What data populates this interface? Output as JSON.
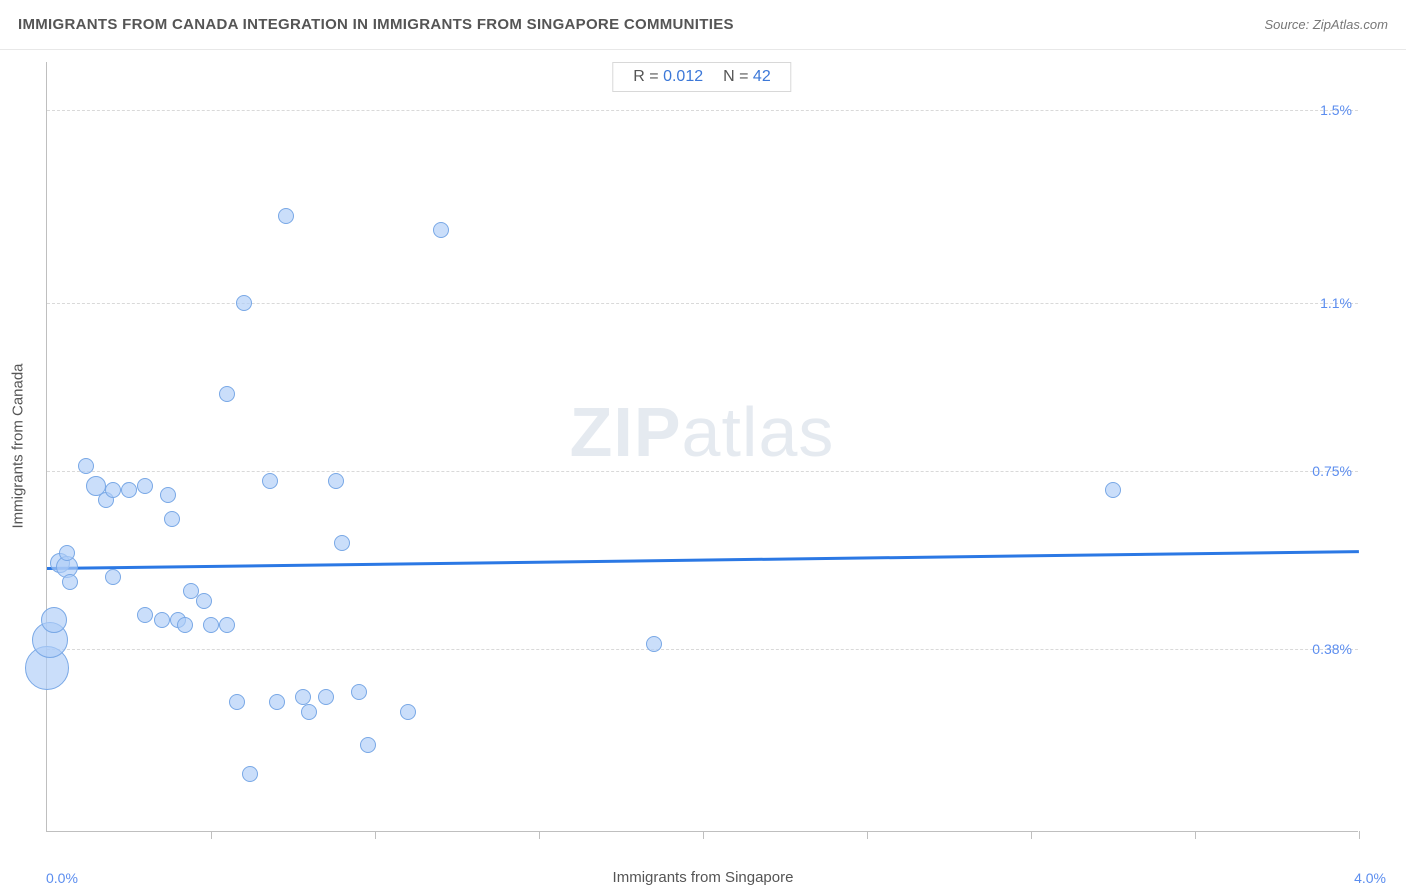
{
  "header": {
    "title": "IMMIGRANTS FROM CANADA INTEGRATION IN IMMIGRANTS FROM SINGAPORE COMMUNITIES",
    "source_prefix": "Source: ",
    "source_name": "ZipAtlas.com"
  },
  "chart": {
    "type": "scatter",
    "xlabel": "Immigrants from Singapore",
    "ylabel": "Immigrants from Canada",
    "xlim": [
      0.0,
      4.0
    ],
    "ylim": [
      0.0,
      1.6
    ],
    "xmin_label": "0.0%",
    "xmax_label": "4.0%",
    "ytick_labels": [
      {
        "value": 0.38,
        "label": "0.38%"
      },
      {
        "value": 0.75,
        "label": "0.75%"
      },
      {
        "value": 1.1,
        "label": "1.1%"
      },
      {
        "value": 1.5,
        "label": "1.5%"
      }
    ],
    "xtick_positions": [
      0.5,
      1.0,
      1.5,
      2.0,
      2.5,
      3.0,
      3.5,
      4.0
    ],
    "gridlines_y": [
      0.38,
      0.75,
      1.1,
      1.5
    ],
    "background_color": "#ffffff",
    "grid_color": "#d9d9d9",
    "axis_color": "#bfbfbf",
    "point_fill": "rgba(173,205,247,0.65)",
    "point_stroke": "#79a8e6",
    "regression_color": "#2b78e4",
    "stats": {
      "r_label": "R =",
      "r_value": "0.012",
      "n_label": "N =",
      "n_value": "42"
    },
    "regression": {
      "y_at_xmin": 0.55,
      "y_at_xmax": 0.585
    },
    "points": [
      {
        "x": 0.0,
        "y": 0.34,
        "r": 22
      },
      {
        "x": 0.01,
        "y": 0.4,
        "r": 18
      },
      {
        "x": 0.02,
        "y": 0.44,
        "r": 13
      },
      {
        "x": 0.04,
        "y": 0.56,
        "r": 10
      },
      {
        "x": 0.06,
        "y": 0.55,
        "r": 11
      },
      {
        "x": 0.06,
        "y": 0.58,
        "r": 8
      },
      {
        "x": 0.07,
        "y": 0.52,
        "r": 8
      },
      {
        "x": 0.12,
        "y": 0.76,
        "r": 8
      },
      {
        "x": 0.15,
        "y": 0.72,
        "r": 10
      },
      {
        "x": 0.18,
        "y": 0.69,
        "r": 8
      },
      {
        "x": 0.2,
        "y": 0.71,
        "r": 8
      },
      {
        "x": 0.2,
        "y": 0.53,
        "r": 8
      },
      {
        "x": 0.25,
        "y": 0.71,
        "r": 8
      },
      {
        "x": 0.3,
        "y": 0.72,
        "r": 8
      },
      {
        "x": 0.3,
        "y": 0.45,
        "r": 8
      },
      {
        "x": 0.35,
        "y": 0.44,
        "r": 8
      },
      {
        "x": 0.37,
        "y": 0.7,
        "r": 8
      },
      {
        "x": 0.38,
        "y": 0.65,
        "r": 8
      },
      {
        "x": 0.4,
        "y": 0.44,
        "r": 8
      },
      {
        "x": 0.42,
        "y": 0.43,
        "r": 8
      },
      {
        "x": 0.44,
        "y": 0.5,
        "r": 8
      },
      {
        "x": 0.48,
        "y": 0.48,
        "r": 8
      },
      {
        "x": 0.5,
        "y": 0.43,
        "r": 8
      },
      {
        "x": 0.55,
        "y": 0.43,
        "r": 8
      },
      {
        "x": 0.58,
        "y": 0.27,
        "r": 8
      },
      {
        "x": 0.55,
        "y": 0.91,
        "r": 8
      },
      {
        "x": 0.6,
        "y": 1.1,
        "r": 8
      },
      {
        "x": 0.62,
        "y": 0.12,
        "r": 8
      },
      {
        "x": 0.68,
        "y": 0.73,
        "r": 8
      },
      {
        "x": 0.7,
        "y": 0.27,
        "r": 8
      },
      {
        "x": 0.73,
        "y": 1.28,
        "r": 8
      },
      {
        "x": 0.78,
        "y": 0.28,
        "r": 8
      },
      {
        "x": 0.8,
        "y": 0.25,
        "r": 8
      },
      {
        "x": 0.85,
        "y": 0.28,
        "r": 8
      },
      {
        "x": 0.88,
        "y": 0.73,
        "r": 8
      },
      {
        "x": 0.9,
        "y": 0.6,
        "r": 8
      },
      {
        "x": 0.95,
        "y": 0.29,
        "r": 8
      },
      {
        "x": 0.98,
        "y": 0.18,
        "r": 8
      },
      {
        "x": 1.1,
        "y": 0.25,
        "r": 8
      },
      {
        "x": 1.2,
        "y": 1.25,
        "r": 8
      },
      {
        "x": 1.85,
        "y": 0.39,
        "r": 8
      },
      {
        "x": 3.25,
        "y": 0.71,
        "r": 8
      }
    ],
    "watermark": {
      "bold": "ZIP",
      "rest": "atlas"
    }
  }
}
